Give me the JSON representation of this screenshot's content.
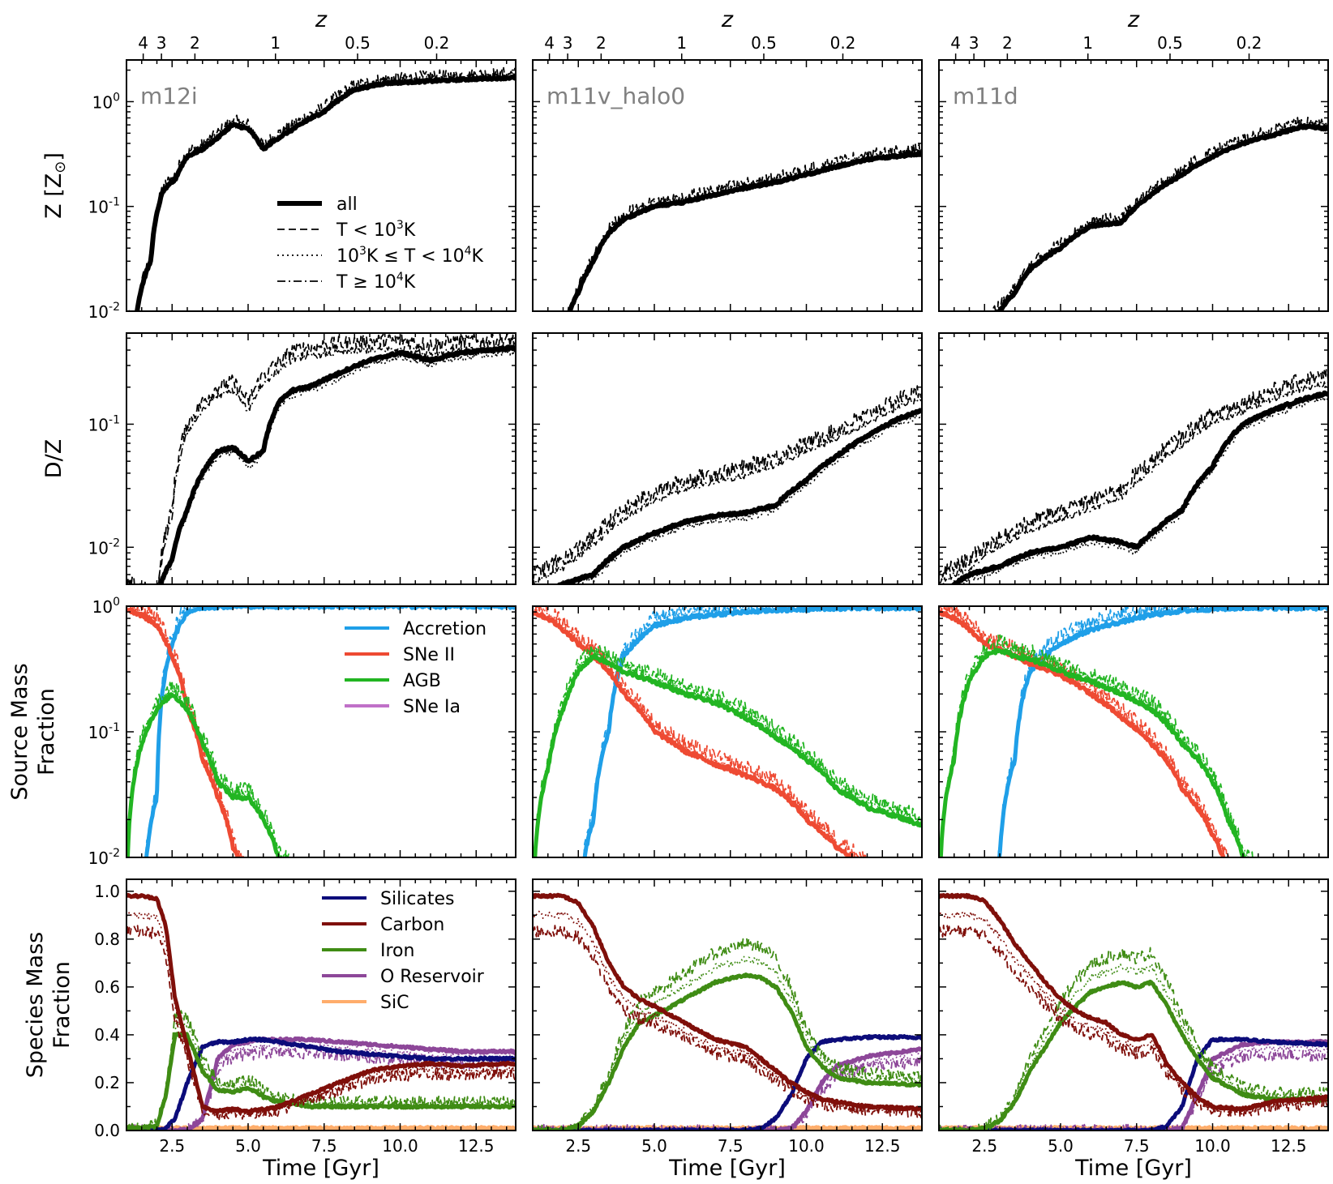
{
  "figure": {
    "top_axis_label": "z",
    "top_ticks": [
      {
        "label": "4",
        "time": 1.55
      },
      {
        "label": "3",
        "time": 2.15
      },
      {
        "label": "2",
        "time": 3.25
      },
      {
        "label": "1",
        "time": 5.9
      },
      {
        "label": "0.5",
        "time": 8.6
      },
      {
        "label": "0.2",
        "time": 11.2
      }
    ],
    "xlabel": "Time [Gyr]",
    "xlim": [
      1.0,
      13.8
    ],
    "x_ticks": [
      2.5,
      5.0,
      7.5,
      10.0,
      12.5
    ],
    "x_tick_labels": [
      "2.5",
      "5.0",
      "7.5",
      "10.0",
      "12.5"
    ],
    "colors": {
      "accretion": "#1f9fe8",
      "sneII": "#ee4a33",
      "agb": "#22b522",
      "sneIa": "#c070c8",
      "silicates": "#0c0c7a",
      "carbon": "#7f0f0a",
      "iron": "#3f8c14",
      "o_reservoir": "#8d4799",
      "sic": "#ffad6b"
    }
  },
  "rows": [
    {
      "ylabel": "Z [Z",
      "ylabel_sub": "⊙",
      "ylabel_end": "]",
      "ytick_labels": [
        "10",
        "10",
        "10"
      ],
      "ytick_exps": [
        "-2",
        "-1",
        "0"
      ]
    },
    {
      "ylabel": "D/Z",
      "ytick_labels": [
        "10",
        "10"
      ],
      "ytick_exps": [
        "-2",
        "-1"
      ]
    },
    {
      "ylabel": "Source Mass",
      "ylabel2": "Fraction",
      "ytick_labels": [
        "10",
        "10",
        "10"
      ],
      "ytick_exps": [
        "-2",
        "-1",
        "0"
      ]
    },
    {
      "ylabel": "Species Mass",
      "ylabel2": "Fraction",
      "ytick_labels": [
        "0.0",
        "0.2",
        "0.4",
        "0.6",
        "0.8",
        "1.0"
      ]
    }
  ],
  "legends": {
    "temperature": [
      {
        "label": "all",
        "style": "solid"
      },
      {
        "label": "T < 10",
        "sup": "3",
        "tail": "K",
        "style": "dashed"
      },
      {
        "label": "10",
        "sup": "3",
        "mid": "K ≤ T < 10",
        "sup2": "4",
        "tail": "K",
        "style": "dotted"
      },
      {
        "label": "T ≥ 10",
        "sup": "4",
        "tail": "K",
        "style": "dashdot"
      }
    ],
    "source": [
      "Accretion",
      "SNe II",
      "AGB",
      "SNe Ia"
    ],
    "species": [
      "Silicates",
      "Carbon",
      "Iron",
      "O Reservoir",
      "SiC"
    ]
  },
  "chart_data": [
    {
      "type": "line",
      "panel": "m12i",
      "title": "m12i",
      "metallicity": {
        "ylim": [
          0.01,
          2.5
        ],
        "scale": "log",
        "x": [
          1.3,
          1.8,
          2.2,
          2.6,
          3.0,
          3.5,
          4.0,
          4.5,
          5.0,
          5.5,
          6.5,
          7.5,
          8.5,
          9.5,
          10.5,
          11.5,
          12.5,
          13.8
        ],
        "all": [
          0.008,
          0.03,
          0.14,
          0.18,
          0.3,
          0.35,
          0.45,
          0.6,
          0.55,
          0.35,
          0.55,
          0.8,
          1.3,
          1.5,
          1.55,
          1.6,
          1.65,
          1.7
        ]
      },
      "dust_to_metals": {
        "ylim": [
          0.005,
          0.55
        ],
        "scale": "log",
        "x": [
          1.3,
          2.0,
          2.5,
          3.0,
          3.5,
          4.0,
          4.5,
          5.0,
          5.5,
          6.0,
          6.5,
          7.0,
          8.0,
          9.0,
          10.0,
          11.0,
          12.0,
          13.8
        ],
        "all": [
          0.004,
          0.004,
          0.008,
          0.02,
          0.04,
          0.06,
          0.065,
          0.05,
          0.06,
          0.15,
          0.19,
          0.2,
          0.26,
          0.33,
          0.38,
          0.33,
          0.38,
          0.42
        ],
        "cold": [
          0.005,
          0.004,
          0.02,
          0.1,
          0.15,
          0.2,
          0.22,
          0.15,
          0.25,
          0.32,
          0.4,
          0.42,
          0.45,
          0.47,
          0.48,
          0.44,
          0.47,
          0.48
        ]
      },
      "source_fraction": {
        "ylim": [
          0.01,
          1.0
        ],
        "scale": "log",
        "x": [
          1.0,
          1.5,
          2.0,
          2.5,
          3.0,
          3.5,
          4.0,
          4.5,
          5.0,
          5.5,
          6.0,
          7.0,
          10.0,
          13.8
        ],
        "accretion": [
          0.001,
          0.001,
          0.03,
          0.5,
          0.9,
          0.97,
          0.99,
          1.0,
          1.0,
          1.0,
          1.0,
          1.0,
          1.0,
          1.0
        ],
        "sneII": [
          0.95,
          0.85,
          0.7,
          0.4,
          0.15,
          0.06,
          0.03,
          0.012,
          0.006,
          0.003,
          0.002,
          0.001,
          0.001,
          0.001
        ],
        "agb": [
          0.004,
          0.08,
          0.15,
          0.2,
          0.15,
          0.08,
          0.04,
          0.03,
          0.03,
          0.02,
          0.01,
          0.005,
          0.004,
          0.004
        ]
      },
      "species_fraction": {
        "ylim": [
          0.0,
          1.05
        ],
        "scale": "linear",
        "x": [
          1.0,
          1.5,
          2.0,
          2.3,
          2.6,
          3.0,
          3.5,
          4.0,
          4.5,
          5.0,
          5.5,
          6.0,
          7.0,
          8.0,
          9.0,
          10.0,
          11.0,
          12.0,
          13.8
        ],
        "silicates": [
          0.0,
          0.0,
          0.0,
          0.01,
          0.05,
          0.2,
          0.35,
          0.37,
          0.37,
          0.38,
          0.38,
          0.37,
          0.35,
          0.33,
          0.32,
          0.31,
          0.3,
          0.3,
          0.3
        ],
        "carbon": [
          0.98,
          0.98,
          0.97,
          0.85,
          0.55,
          0.35,
          0.1,
          0.08,
          0.09,
          0.08,
          0.09,
          0.1,
          0.15,
          0.2,
          0.25,
          0.27,
          0.28,
          0.27,
          0.28
        ],
        "iron": [
          0.01,
          0.01,
          0.02,
          0.15,
          0.4,
          0.4,
          0.25,
          0.17,
          0.16,
          0.18,
          0.14,
          0.12,
          0.1,
          0.1,
          0.1,
          0.1,
          0.1,
          0.1,
          0.1
        ],
        "o_reservoir": [
          0.0,
          0.0,
          0.0,
          0.0,
          0.0,
          0.0,
          0.05,
          0.3,
          0.36,
          0.37,
          0.38,
          0.38,
          0.38,
          0.37,
          0.36,
          0.35,
          0.34,
          0.33,
          0.33
        ],
        "sic": [
          0.01,
          0.01,
          0.01,
          0.01,
          0.01,
          0.01,
          0.01,
          0.01,
          0.01,
          0.01,
          0.01,
          0.01,
          0.01,
          0.01,
          0.01,
          0.01,
          0.01,
          0.01,
          0.01
        ]
      }
    },
    {
      "type": "line",
      "panel": "m11v_halo0",
      "title": "m11v_halo0",
      "metallicity": {
        "ylim": [
          0.01,
          2.5
        ],
        "scale": "log",
        "x": [
          1.0,
          1.5,
          2.0,
          2.5,
          3.0,
          3.5,
          4.0,
          5.0,
          6.0,
          7.0,
          8.0,
          9.0,
          10.0,
          11.0,
          12.0,
          13.8
        ],
        "all": [
          0.004,
          0.005,
          0.006,
          0.015,
          0.03,
          0.055,
          0.075,
          0.1,
          0.11,
          0.13,
          0.15,
          0.17,
          0.2,
          0.24,
          0.28,
          0.32
        ]
      },
      "dust_to_metals": {
        "ylim": [
          0.005,
          0.55
        ],
        "scale": "log",
        "x": [
          1.0,
          2.0,
          3.0,
          4.0,
          5.0,
          6.0,
          7.0,
          8.0,
          9.0,
          10.0,
          11.0,
          12.0,
          13.0,
          13.8
        ],
        "all": [
          0.004,
          0.005,
          0.006,
          0.01,
          0.013,
          0.016,
          0.018,
          0.019,
          0.022,
          0.035,
          0.055,
          0.08,
          0.11,
          0.13
        ],
        "cold": [
          0.006,
          0.008,
          0.012,
          0.02,
          0.028,
          0.035,
          0.04,
          0.045,
          0.055,
          0.07,
          0.09,
          0.12,
          0.16,
          0.19
        ]
      },
      "source_fraction": {
        "ylim": [
          0.01,
          1.0
        ],
        "scale": "log",
        "x": [
          1.0,
          1.5,
          2.0,
          2.5,
          3.0,
          3.5,
          4.0,
          5.0,
          6.0,
          7.0,
          8.0,
          9.0,
          10.0,
          11.0,
          12.0,
          13.8
        ],
        "accretion": [
          0.001,
          0.001,
          0.001,
          0.003,
          0.02,
          0.1,
          0.4,
          0.7,
          0.8,
          0.86,
          0.9,
          0.93,
          0.95,
          0.96,
          0.97,
          0.97
        ],
        "sneII": [
          0.9,
          0.8,
          0.65,
          0.5,
          0.4,
          0.3,
          0.2,
          0.1,
          0.07,
          0.055,
          0.045,
          0.035,
          0.02,
          0.012,
          0.008,
          0.006
        ],
        "agb": [
          0.003,
          0.05,
          0.15,
          0.3,
          0.4,
          0.35,
          0.3,
          0.25,
          0.2,
          0.17,
          0.13,
          0.09,
          0.06,
          0.035,
          0.025,
          0.018
        ]
      },
      "species_fraction": {
        "ylim": [
          0.0,
          1.05
        ],
        "scale": "linear",
        "x": [
          1.0,
          2.0,
          2.5,
          3.0,
          3.5,
          4.0,
          4.5,
          5.0,
          6.0,
          7.0,
          8.0,
          8.5,
          9.0,
          9.5,
          10.0,
          10.5,
          11.0,
          12.0,
          13.8
        ],
        "silicates": [
          0.0,
          0.0,
          0.0,
          0.0,
          0.0,
          0.0,
          0.0,
          0.0,
          0.0,
          0.0,
          0.0,
          0.01,
          0.05,
          0.15,
          0.3,
          0.37,
          0.38,
          0.39,
          0.39
        ],
        "carbon": [
          0.98,
          0.98,
          0.95,
          0.85,
          0.7,
          0.6,
          0.55,
          0.52,
          0.45,
          0.38,
          0.35,
          0.3,
          0.25,
          0.2,
          0.16,
          0.13,
          0.12,
          0.1,
          0.09
        ],
        "iron": [
          0.0,
          0.0,
          0.02,
          0.08,
          0.2,
          0.35,
          0.45,
          0.48,
          0.55,
          0.62,
          0.65,
          0.64,
          0.6,
          0.5,
          0.35,
          0.27,
          0.22,
          0.2,
          0.19
        ],
        "o_reservoir": [
          0.0,
          0.0,
          0.0,
          0.0,
          0.0,
          0.0,
          0.0,
          0.0,
          0.0,
          0.0,
          0.0,
          0.0,
          0.0,
          0.01,
          0.08,
          0.2,
          0.27,
          0.31,
          0.34
        ],
        "sic": [
          0.01,
          0.01,
          0.01,
          0.01,
          0.01,
          0.01,
          0.01,
          0.01,
          0.01,
          0.01,
          0.01,
          0.01,
          0.01,
          0.01,
          0.01,
          0.01,
          0.01,
          0.01,
          0.01
        ]
      }
    },
    {
      "type": "line",
      "panel": "m11d",
      "title": "m11d",
      "metallicity": {
        "ylim": [
          0.01,
          2.5
        ],
        "scale": "log",
        "x": [
          1.0,
          1.5,
          2.0,
          2.5,
          3.0,
          3.5,
          4.0,
          5.0,
          6.0,
          7.0,
          8.0,
          9.0,
          10.0,
          11.0,
          12.0,
          13.0,
          13.8
        ],
        "all": [
          0.004,
          0.005,
          0.006,
          0.008,
          0.01,
          0.015,
          0.025,
          0.04,
          0.065,
          0.07,
          0.13,
          0.2,
          0.3,
          0.4,
          0.48,
          0.58,
          0.55
        ]
      },
      "dust_to_metals": {
        "ylim": [
          0.005,
          0.55
        ],
        "scale": "log",
        "x": [
          1.0,
          2.0,
          3.0,
          4.0,
          5.0,
          6.0,
          7.0,
          7.5,
          8.0,
          9.0,
          10.0,
          11.0,
          12.0,
          13.0,
          13.8
        ],
        "all": [
          0.004,
          0.006,
          0.007,
          0.009,
          0.01,
          0.012,
          0.011,
          0.01,
          0.013,
          0.02,
          0.045,
          0.1,
          0.13,
          0.16,
          0.18
        ],
        "cold": [
          0.006,
          0.008,
          0.012,
          0.016,
          0.02,
          0.024,
          0.03,
          0.04,
          0.05,
          0.08,
          0.12,
          0.15,
          0.19,
          0.23,
          0.25
        ]
      },
      "source_fraction": {
        "ylim": [
          0.01,
          1.0
        ],
        "scale": "log",
        "x": [
          1.0,
          1.5,
          2.0,
          2.5,
          3.0,
          3.5,
          4.0,
          5.0,
          6.0,
          7.0,
          8.0,
          9.0,
          10.0,
          10.5,
          11.0,
          12.0,
          13.8
        ],
        "accretion": [
          0.001,
          0.001,
          0.001,
          0.003,
          0.01,
          0.06,
          0.3,
          0.5,
          0.65,
          0.75,
          0.85,
          0.92,
          0.95,
          0.96,
          0.97,
          0.97,
          0.97
        ],
        "sneII": [
          0.9,
          0.8,
          0.65,
          0.5,
          0.45,
          0.4,
          0.35,
          0.28,
          0.2,
          0.13,
          0.08,
          0.035,
          0.015,
          0.008,
          0.005,
          0.003,
          0.002
        ],
        "agb": [
          0.003,
          0.06,
          0.25,
          0.4,
          0.45,
          0.4,
          0.38,
          0.3,
          0.25,
          0.2,
          0.15,
          0.08,
          0.04,
          0.02,
          0.01,
          0.006,
          0.005
        ]
      },
      "species_fraction": {
        "ylim": [
          0.0,
          1.05
        ],
        "scale": "linear",
        "x": [
          1.0,
          2.0,
          2.5,
          3.0,
          3.5,
          4.0,
          4.5,
          5.0,
          5.5,
          6.0,
          6.5,
          7.0,
          7.5,
          8.0,
          8.5,
          9.0,
          9.5,
          10.0,
          11.0,
          12.0,
          13.8
        ],
        "silicates": [
          0.0,
          0.0,
          0.0,
          0.0,
          0.0,
          0.0,
          0.0,
          0.0,
          0.0,
          0.0,
          0.0,
          0.0,
          0.0,
          0.0,
          0.02,
          0.1,
          0.3,
          0.38,
          0.38,
          0.37,
          0.36
        ],
        "carbon": [
          0.98,
          0.98,
          0.96,
          0.88,
          0.78,
          0.7,
          0.62,
          0.55,
          0.5,
          0.47,
          0.45,
          0.4,
          0.38,
          0.4,
          0.28,
          0.2,
          0.14,
          0.1,
          0.09,
          0.12,
          0.14
        ],
        "iron": [
          0.0,
          0.0,
          0.01,
          0.04,
          0.12,
          0.25,
          0.35,
          0.45,
          0.52,
          0.58,
          0.6,
          0.62,
          0.6,
          0.62,
          0.52,
          0.4,
          0.3,
          0.22,
          0.15,
          0.13,
          0.13
        ],
        "o_reservoir": [
          0.0,
          0.0,
          0.0,
          0.0,
          0.0,
          0.0,
          0.0,
          0.0,
          0.0,
          0.0,
          0.0,
          0.0,
          0.0,
          0.0,
          0.0,
          0.01,
          0.15,
          0.3,
          0.36,
          0.37,
          0.37
        ],
        "sic": [
          0.01,
          0.01,
          0.01,
          0.01,
          0.01,
          0.01,
          0.01,
          0.01,
          0.01,
          0.01,
          0.01,
          0.01,
          0.01,
          0.01,
          0.01,
          0.01,
          0.01,
          0.01,
          0.01,
          0.01,
          0.01
        ]
      }
    }
  ]
}
